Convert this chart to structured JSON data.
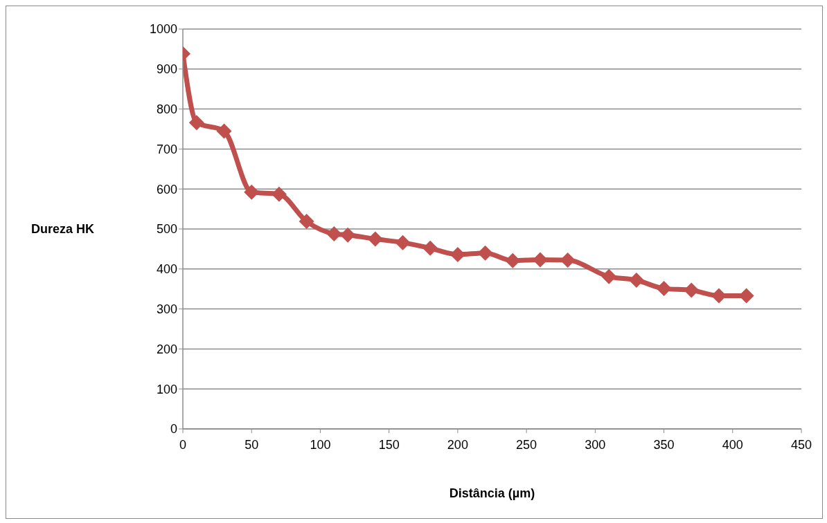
{
  "chart_data": {
    "type": "line",
    "xlabel": "Distância (µm)",
    "ylabel": "Dureza HK",
    "x": [
      0,
      10,
      30,
      50,
      70,
      90,
      110,
      120,
      140,
      160,
      180,
      200,
      220,
      240,
      260,
      280,
      310,
      330,
      350,
      370,
      390,
      410
    ],
    "series": [
      {
        "color": "#c0504d",
        "values": [
          938,
          766,
          745,
          592,
          587,
          519,
          488,
          485,
          475,
          466,
          452,
          436,
          440,
          421,
          423,
          422,
          381,
          372,
          351,
          347,
          333,
          333
        ]
      }
    ],
    "xlim": [
      0,
      450
    ],
    "xticks": [
      0,
      50,
      100,
      150,
      200,
      250,
      300,
      350,
      400,
      450
    ],
    "ylim": [
      0,
      1000
    ],
    "yticks": [
      0,
      100,
      200,
      300,
      400,
      500,
      600,
      700,
      800,
      900,
      1000
    ],
    "grid": "y",
    "legend": false,
    "marker": "diamond",
    "line_style": "solid"
  }
}
